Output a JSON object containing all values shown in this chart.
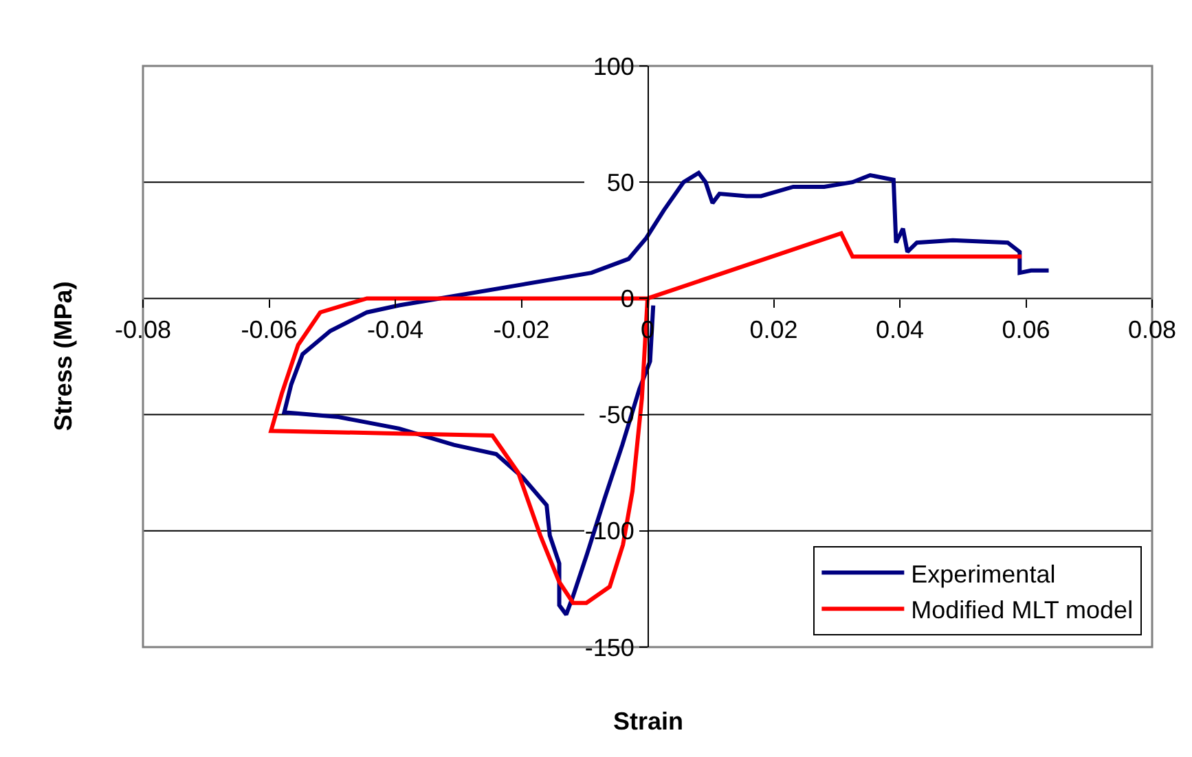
{
  "chart_data": {
    "type": "line",
    "xlabel": "Strain",
    "ylabel": "Stress (MPa)",
    "xlim": [
      -0.08,
      0.08
    ],
    "xticks": [
      -0.08,
      -0.06,
      -0.04,
      -0.02,
      0,
      0.02,
      0.04,
      0.06,
      0.08
    ],
    "ylim": [
      -150,
      100
    ],
    "yticks": [
      -150,
      -100,
      -50,
      0,
      50,
      100
    ],
    "grid": "y",
    "legend": "bottom right",
    "marker": "none",
    "line_style": "solid",
    "series": [
      {
        "name": "Experimental",
        "color": "#000080",
        "x": [
          0.0009,
          0.0004,
          -0.0013,
          -0.004,
          -0.0068,
          -0.0096,
          -0.0118,
          -0.0129,
          -0.014,
          -0.014,
          -0.0155,
          -0.016,
          -0.0198,
          -0.024,
          -0.0307,
          -0.0394,
          -0.049,
          -0.0576,
          -0.0565,
          -0.0547,
          -0.0503,
          -0.0445,
          -0.0394,
          -0.0307,
          -0.0198,
          -0.0089,
          -0.003,
          -0.0002,
          0.0026,
          0.0057,
          0.0063,
          0.0081,
          0.0092,
          0.0103,
          0.0114,
          0.0157,
          0.018,
          0.0231,
          0.028,
          0.0325,
          0.0353,
          0.039,
          0.0394,
          0.0405,
          0.0412,
          0.0427,
          0.0484,
          0.0571,
          0.059,
          0.059,
          0.0608,
          0.0636
        ],
        "values": [
          -3,
          -27,
          -39,
          -63,
          -86,
          -110,
          -128,
          -136,
          -132,
          -114,
          -102,
          -89,
          -77,
          -67,
          -63,
          -56,
          -51,
          -49,
          -37,
          -24,
          -14,
          -6,
          -3,
          1,
          6,
          11,
          17,
          26,
          38,
          50,
          51,
          54,
          50,
          41,
          45,
          44,
          44,
          48,
          48,
          50,
          53,
          51,
          24,
          30,
          20,
          24,
          25,
          24,
          20,
          11,
          12,
          12
        ]
      },
      {
        "name": "Modified MLT model",
        "color": "#ff0000",
        "x": [
          0,
          -0.0009,
          -0.0024,
          -0.0039,
          -0.006,
          -0.0097,
          -0.0118,
          -0.014,
          -0.017,
          -0.0205,
          -0.0246,
          -0.0416,
          -0.0597,
          -0.058,
          -0.0554,
          -0.0519,
          -0.0445,
          0,
          0.0307,
          0.0325,
          0.0593
        ],
        "values": [
          0,
          -43,
          -83,
          -106,
          -124,
          -131,
          -131,
          -122,
          -102,
          -75,
          -59,
          -58,
          -57,
          -41,
          -20,
          -6,
          0,
          0,
          28,
          18,
          18
        ]
      }
    ]
  }
}
